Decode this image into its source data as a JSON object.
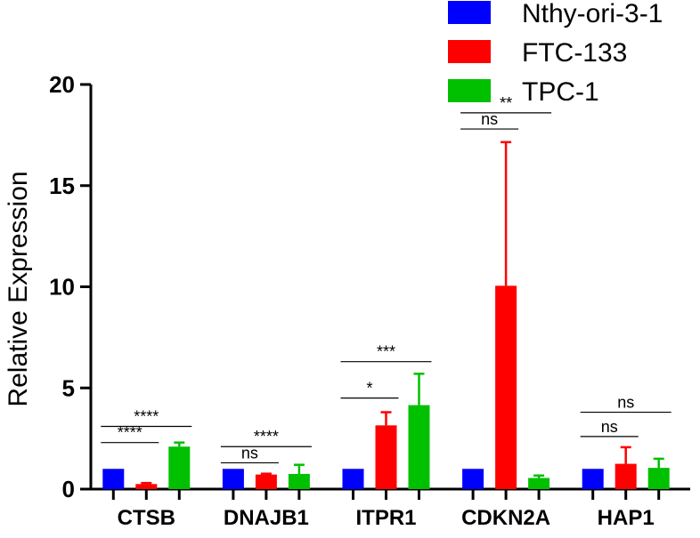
{
  "chart_data": {
    "type": "bar",
    "categories": [
      "CTSB",
      "DNAJB1",
      "ITPR1",
      "CDKN2A",
      "HAP1"
    ],
    "series": [
      {
        "name": "Nthy-ori-3-1",
        "color": "#0000ff",
        "values": [
          1.0,
          1.0,
          1.0,
          1.0,
          1.0
        ],
        "errors": [
          0,
          0,
          0,
          0,
          0
        ]
      },
      {
        "name": "FTC-133",
        "color": "#ff0000",
        "values": [
          0.25,
          0.72,
          3.15,
          10.05,
          1.25
        ],
        "errors": [
          0.05,
          0.04,
          0.65,
          7.1,
          0.82
        ]
      },
      {
        "name": "TPC-1",
        "color": "#00c000",
        "values": [
          2.1,
          0.75,
          4.15,
          0.55,
          1.05
        ],
        "errors": [
          0.2,
          0.45,
          1.55,
          0.12,
          0.45
        ]
      }
    ],
    "ylabel": "Relative Expression",
    "xlabel": "",
    "ylim": [
      0,
      20
    ],
    "yticks": [
      "0",
      "5",
      "10",
      "15",
      "20"
    ],
    "legend_position": "top-right",
    "significance": [
      {
        "category": 0,
        "from": 0,
        "to": 1,
        "y": 2.3,
        "label": "****"
      },
      {
        "category": 0,
        "from": 0,
        "to": 2,
        "y": 3.1,
        "label": "****"
      },
      {
        "category": 1,
        "from": 0,
        "to": 1,
        "y": 1.3,
        "label": "ns"
      },
      {
        "category": 1,
        "from": 0,
        "to": 2,
        "y": 2.1,
        "label": "****"
      },
      {
        "category": 2,
        "from": 0,
        "to": 1,
        "y": 4.5,
        "label": "*"
      },
      {
        "category": 2,
        "from": 0,
        "to": 2,
        "y": 6.3,
        "label": "***"
      },
      {
        "category": 3,
        "from": 0,
        "to": 1,
        "y": 17.8,
        "label": "ns"
      },
      {
        "category": 3,
        "from": 0,
        "to": 2,
        "y": 18.6,
        "label": "**"
      },
      {
        "category": 4,
        "from": 0,
        "to": 1,
        "y": 2.6,
        "label": "ns"
      },
      {
        "category": 4,
        "from": 0,
        "to": 2,
        "y": 3.8,
        "label": "ns"
      }
    ]
  }
}
